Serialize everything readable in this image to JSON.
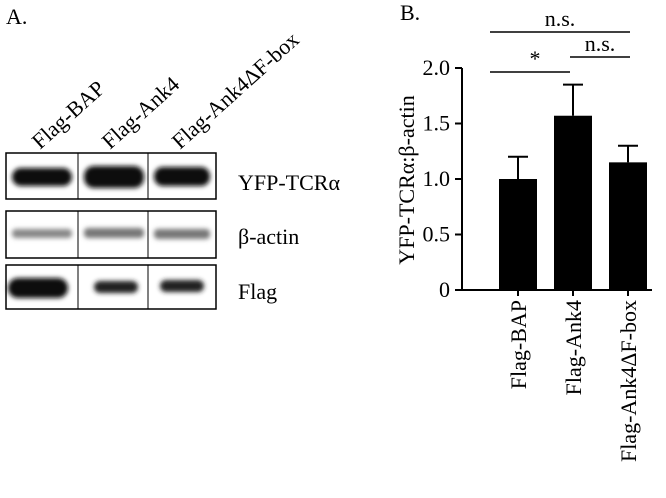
{
  "panel_a": {
    "label": "A.",
    "lanes": [
      "Flag-BAP",
      "Flag-Ank4",
      "Flag-Ank4ΔF-box"
    ],
    "rows": [
      "YFP-TCRα",
      "β-actin",
      "Flag"
    ]
  },
  "chart_data": {
    "type": "bar",
    "panel_label": "B.",
    "ylabel": "YFP-TCRα:β-actin",
    "categories": [
      "Flag-BAP",
      "Flag-Ank4",
      "Flag-Ank4ΔF-box"
    ],
    "values": [
      1.0,
      1.57,
      1.15
    ],
    "errors": [
      0.2,
      0.28,
      0.15
    ],
    "color": "#000000",
    "ylim": [
      0,
      2.0
    ],
    "yticks": [
      0,
      0.5,
      {
        "value": 1,
        "label": "1.0"
      },
      1.5,
      {
        "value": 2,
        "label": "2.0"
      }
    ],
    "annotations": [
      "n.s.",
      "*",
      "n.s."
    ]
  }
}
